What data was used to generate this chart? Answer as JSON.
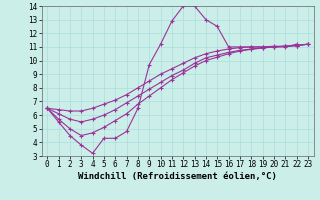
{
  "xlabel": "Windchill (Refroidissement éolien,°C)",
  "bg_color": "#cceee8",
  "line_color": "#993399",
  "xlim": [
    -0.5,
    23.5
  ],
  "ylim": [
    3,
    14
  ],
  "xticks": [
    0,
    1,
    2,
    3,
    4,
    5,
    6,
    7,
    8,
    9,
    10,
    11,
    12,
    13,
    14,
    15,
    16,
    17,
    18,
    19,
    20,
    21,
    22,
    23
  ],
  "yticks": [
    3,
    4,
    5,
    6,
    7,
    8,
    9,
    10,
    11,
    12,
    13,
    14
  ],
  "s1_x": [
    0,
    1,
    2,
    3,
    4,
    5,
    6,
    7,
    8,
    9,
    10,
    11,
    12,
    13,
    14,
    15,
    16,
    17,
    18,
    19,
    20,
    21,
    22
  ],
  "s1_y": [
    6.5,
    5.5,
    4.5,
    3.8,
    3.2,
    4.3,
    4.3,
    4.8,
    6.5,
    9.7,
    11.2,
    12.9,
    14.0,
    14.0,
    13.0,
    12.5,
    11.0,
    11.0,
    11.0,
    11.0,
    11.0,
    11.0,
    11.2
  ],
  "s2_x": [
    0,
    1,
    2,
    3,
    4,
    5,
    6,
    7,
    8,
    9,
    10,
    11,
    12,
    13,
    14,
    15,
    16,
    17,
    18,
    19,
    20,
    21,
    22,
    23
  ],
  "s2_y": [
    6.5,
    6.4,
    6.3,
    6.3,
    6.5,
    6.8,
    7.1,
    7.5,
    8.0,
    8.5,
    9.0,
    9.4,
    9.8,
    10.2,
    10.5,
    10.7,
    10.85,
    10.95,
    11.0,
    11.0,
    11.05,
    11.05,
    11.1,
    11.2
  ],
  "s3_x": [
    0,
    1,
    2,
    3,
    4,
    5,
    6,
    7,
    8,
    9,
    10,
    11,
    12,
    13,
    14,
    15,
    16,
    17,
    18,
    19,
    20,
    21,
    22,
    23
  ],
  "s3_y": [
    6.5,
    6.1,
    5.7,
    5.5,
    5.7,
    6.0,
    6.4,
    6.9,
    7.4,
    7.9,
    8.4,
    8.9,
    9.3,
    9.8,
    10.2,
    10.4,
    10.6,
    10.75,
    10.85,
    10.95,
    11.0,
    11.05,
    11.1,
    11.2
  ],
  "s4_x": [
    0,
    1,
    2,
    3,
    4,
    5,
    6,
    7,
    8,
    9,
    10,
    11,
    12,
    13,
    14,
    15,
    16,
    17,
    18,
    19,
    20,
    21,
    22,
    23
  ],
  "s4_y": [
    6.5,
    5.7,
    5.0,
    4.5,
    4.7,
    5.1,
    5.6,
    6.1,
    6.8,
    7.4,
    8.0,
    8.6,
    9.1,
    9.6,
    10.0,
    10.25,
    10.5,
    10.7,
    10.82,
    10.92,
    11.0,
    11.05,
    11.1,
    11.2
  ],
  "marker": "+",
  "markersize": 3,
  "linewidth": 0.8,
  "tick_fontsize": 5.5,
  "xlabel_fontsize": 6.5,
  "grid_color": "#aadddd",
  "grid_lw": 0.5
}
